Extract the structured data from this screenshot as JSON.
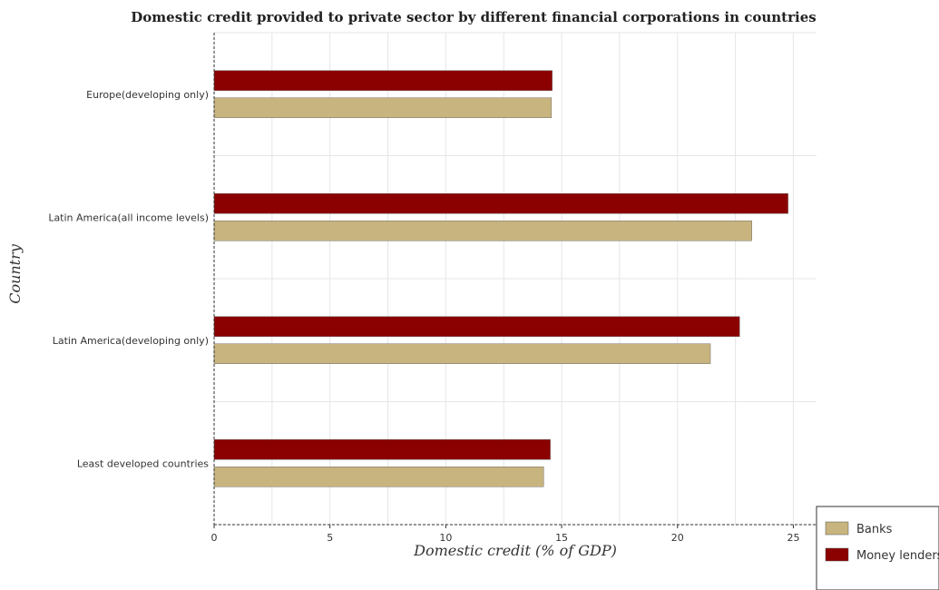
{
  "chart_data": {
    "type": "bar",
    "orientation": "horizontal",
    "title": "Domestic credit provided to private sector by different financial corporations in countries",
    "xlabel": "Domestic credit (% of GDP)",
    "ylabel": "Country",
    "xlim": [
      0,
      26
    ],
    "xticks": [
      0,
      5,
      10,
      15,
      20,
      25
    ],
    "grid": true,
    "legend_position": "bottom-right",
    "categories": [
      "Europe(developing only)",
      "Latin America(all income levels)",
      "Latin America(developing only)",
      "Least developed countries"
    ],
    "series": [
      {
        "name": "Banks",
        "color": "#c8b47e",
        "values": [
          14.56,
          23.21,
          21.42,
          14.22
        ]
      },
      {
        "name": "Money lenders",
        "color": "#8b0000",
        "values": [
          14.59,
          24.77,
          22.68,
          14.51
        ]
      }
    ]
  }
}
